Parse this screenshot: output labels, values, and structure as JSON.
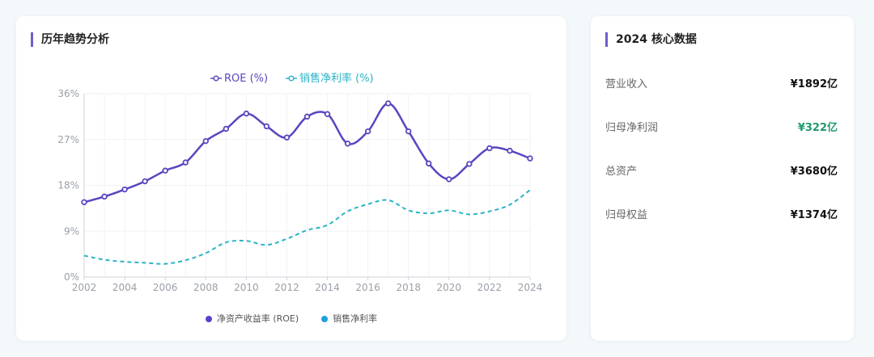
{
  "trend_card": {
    "title": "历年趋势分析"
  },
  "chart_data": {
    "type": "line",
    "title": "",
    "x": [
      2002,
      2003,
      2004,
      2005,
      2006,
      2007,
      2008,
      2009,
      2010,
      2011,
      2012,
      2013,
      2014,
      2015,
      2016,
      2017,
      2018,
      2019,
      2020,
      2021,
      2022,
      2023,
      2024
    ],
    "series": [
      {
        "name": "ROE (%)",
        "color": "#5b45c0",
        "style": "solid",
        "values": [
          14.7,
          15.8,
          17.2,
          18.8,
          20.9,
          22.5,
          26.7,
          29.1,
          32.1,
          29.6,
          27.4,
          31.5,
          32.0,
          26.2,
          28.6,
          34.1,
          28.6,
          22.3,
          19.2,
          22.2,
          25.3,
          24.8,
          23.3
        ]
      },
      {
        "name": "销售净利率 (%)",
        "color": "#2bb3c7",
        "style": "dashed",
        "values": [
          4.2,
          3.4,
          3.0,
          2.8,
          2.6,
          3.3,
          4.7,
          6.8,
          7.1,
          6.3,
          7.5,
          9.2,
          10.2,
          12.9,
          14.3,
          15.1,
          13.1,
          12.5,
          13.1,
          12.3,
          12.9,
          14.2,
          17.1
        ]
      }
    ],
    "xticks": [
      "2002",
      "2004",
      "2006",
      "2008",
      "2010",
      "2012",
      "2014",
      "2016",
      "2018",
      "2020",
      "2022",
      "2024"
    ],
    "yticks": [
      "0%",
      "9%",
      "18%",
      "27%",
      "36%"
    ],
    "ylim": [
      0,
      36
    ],
    "grid": true,
    "legend_placement": "top-center",
    "bottom_legend": [
      {
        "label": "净资产收益率 (ROE)",
        "color": "#5b3fd0"
      },
      {
        "label": "销售净利率",
        "color": "#1ea0e0"
      }
    ]
  },
  "core_card": {
    "title": "2024 核心数据",
    "rows": [
      {
        "label": "营业收入",
        "value": "¥1892亿",
        "color": "#111111"
      },
      {
        "label": "归母净利润",
        "value": "¥322亿",
        "color": "#1f9a6a"
      },
      {
        "label": "总资产",
        "value": "¥3680亿",
        "color": "#111111"
      },
      {
        "label": "归母权益",
        "value": "¥1374亿",
        "color": "#111111"
      }
    ]
  }
}
